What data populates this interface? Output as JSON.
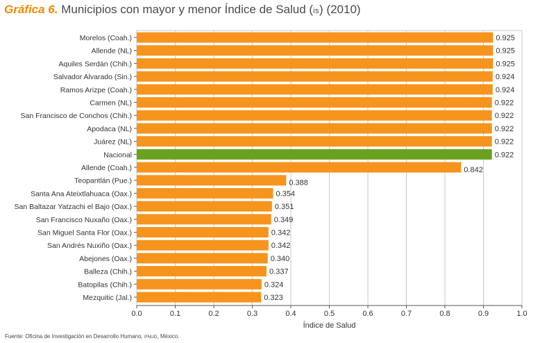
{
  "title": {
    "number": "Gráfica 6.",
    "text": "Municipios con mayor y menor Índice de Salud (",
    "abbr": "IS",
    "after": ") (2010)"
  },
  "source": {
    "prefix": "Fuente: Oficina de Investigación en Desarrollo Humano, ",
    "abbr": "PNUD",
    "suffix": ", México."
  },
  "colors": {
    "bar": "#f7941d",
    "highlight": "#6aa121",
    "grid": "#c8c8c8",
    "axis": "#555555"
  },
  "chart_data": {
    "type": "bar",
    "orientation": "horizontal",
    "xlabel": "Índice de Salud",
    "xlim": [
      0,
      1
    ],
    "xticks": [
      "0.0",
      "0.1",
      "0.2",
      "0.3",
      "0.4",
      "0.5",
      "0.6",
      "0.7",
      "0.8",
      "0.9",
      "1.0"
    ],
    "grid": true,
    "highlight_category": "Nacional",
    "categories": [
      "Morelos (Coah.)",
      "Allende (NL)",
      "Aquiles Serdán (Chih.)",
      "Salvador Alvarado (Sin.)",
      "Ramos Arizpe (Coah.)",
      "Carmen (NL)",
      "San Francisco de Conchos (Chih.)",
      "Apodaca (NL)",
      "Juárez (NL)",
      "Nacional",
      "Allende (Coah.)",
      "Teopantlán (Pue.)",
      "Santa Ana Ateixtlahuaca (Oax.)",
      "San Baltazar Yatzachi el Bajo (Oax.)",
      "San Francisco Nuxaño (Oax.)",
      "San Miguel Santa Flor (Oax.)",
      "San Andrés Nuxiño (Oax.)",
      "Abejones (Oax.)",
      "Balleza (Chih.)",
      "Batopilas (Chih.)",
      "Mezquitic (Jal.)"
    ],
    "values": [
      0.925,
      0.925,
      0.925,
      0.924,
      0.924,
      0.922,
      0.922,
      0.922,
      0.922,
      0.922,
      0.842,
      0.388,
      0.354,
      0.351,
      0.349,
      0.342,
      0.342,
      0.34,
      0.337,
      0.324,
      0.323
    ],
    "value_labels": [
      "0.925",
      "0.925",
      "0.925",
      "0.924",
      "0.924",
      "0.922",
      "0.922",
      "0.922",
      "0.922",
      "0.922",
      "0.842",
      "0.388",
      "0.354",
      "0.351",
      "0.349",
      "0.342",
      "0.342",
      "0.340",
      "0.337",
      "0.324",
      "0.323"
    ]
  }
}
